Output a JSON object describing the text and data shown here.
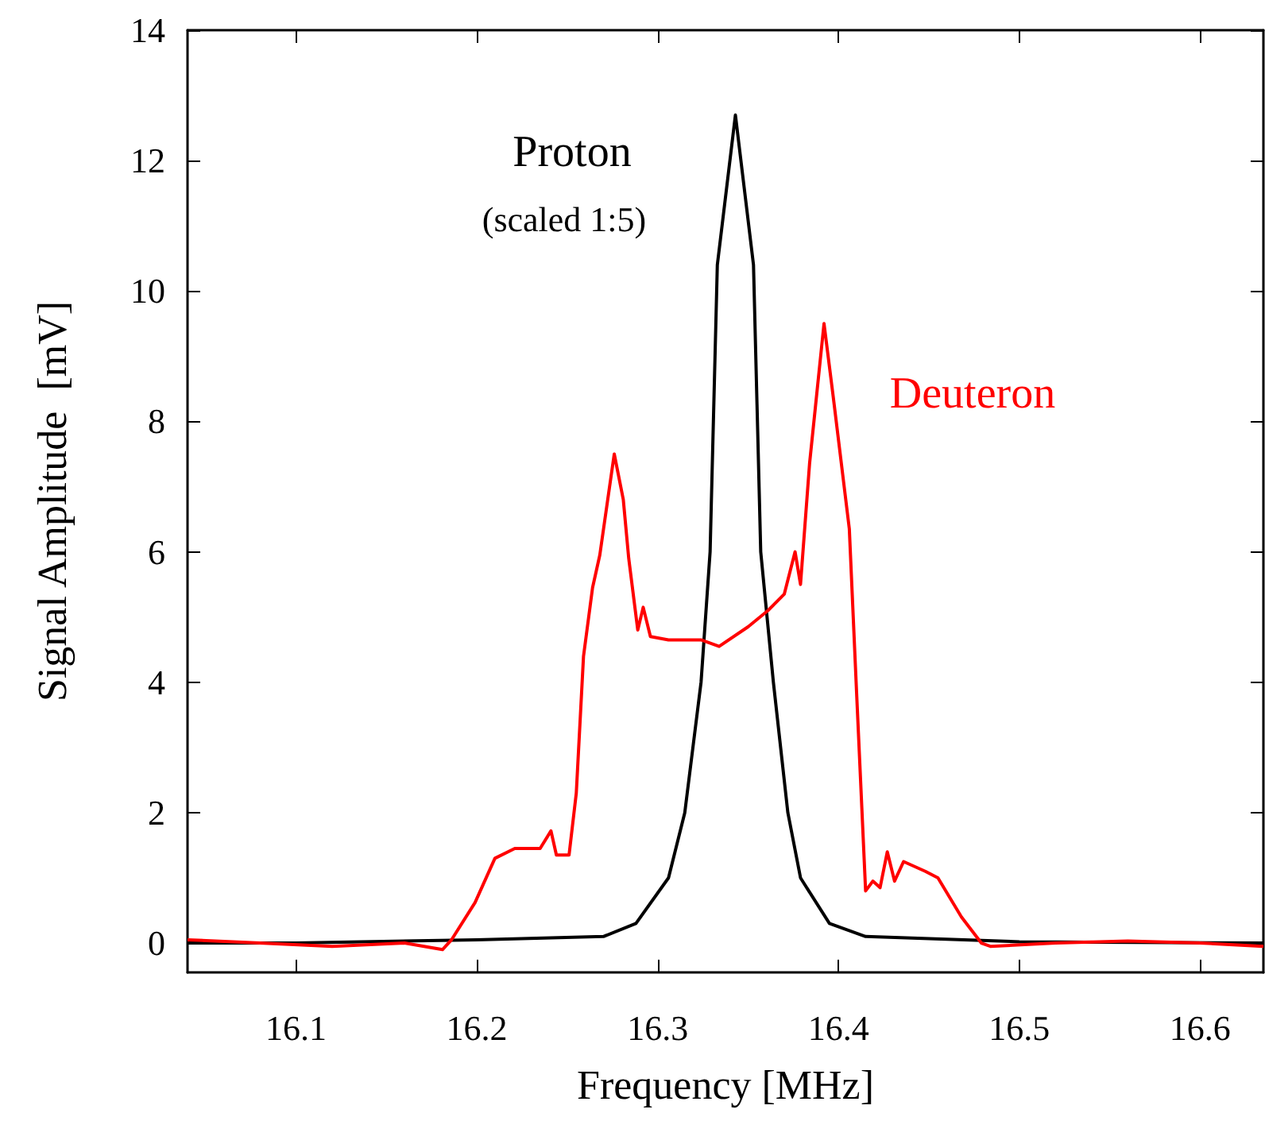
{
  "chart_data": {
    "type": "line",
    "xlabel": "Frequency [MHz]",
    "ylabel": "Signal Amplitude  [mV]",
    "annotations": [
      "(scaled 1:5)"
    ],
    "xlim": [
      16.04,
      16.635
    ],
    "ylim": [
      -0.45,
      14
    ],
    "xticks": [
      16.1,
      16.2,
      16.3,
      16.4,
      16.5,
      16.6
    ],
    "yticks": [
      0,
      2,
      4,
      6,
      8,
      10,
      12,
      14
    ],
    "grid": false,
    "legend": false,
    "marker": "none",
    "line_style": "solid",
    "series": [
      {
        "name": "Proton",
        "color": "#000000",
        "x": [
          16.04,
          16.1,
          16.2,
          16.27,
          16.288,
          16.306,
          16.315,
          16.324,
          16.329,
          16.333,
          16.343,
          16.353,
          16.357,
          16.364,
          16.372,
          16.379,
          16.395,
          16.415,
          16.5,
          16.635
        ],
        "values": [
          0,
          0,
          0.05,
          0.1,
          0.3,
          1,
          2,
          4,
          6,
          10.4,
          12.7,
          10.4,
          6,
          4,
          2,
          1,
          0.3,
          0.1,
          0.02,
          0
        ]
      },
      {
        "name": "Deuteron",
        "color": "#ff0000",
        "x": [
          16.04,
          16.08,
          16.12,
          16.16,
          16.181,
          16.186,
          16.199,
          16.21,
          16.221,
          16.235,
          16.241,
          16.244,
          16.251,
          16.255,
          16.259,
          16.264,
          16.268,
          16.276,
          16.281,
          16.284,
          16.289,
          16.292,
          16.296,
          16.306,
          16.324,
          16.334,
          16.35,
          16.361,
          16.37,
          16.376,
          16.379,
          16.384,
          16.392,
          16.397,
          16.406,
          16.41,
          16.415,
          16.419,
          16.423,
          16.427,
          16.431,
          16.436,
          16.448,
          16.455,
          16.468,
          16.479,
          16.484,
          16.52,
          16.56,
          16.6,
          16.635
        ],
        "values": [
          0.05,
          0,
          -0.05,
          0,
          -0.1,
          0.05,
          0.62,
          1.3,
          1.45,
          1.45,
          1.72,
          1.35,
          1.35,
          2.3,
          4.4,
          5.45,
          5.95,
          7.5,
          6.8,
          5.9,
          4.8,
          5.15,
          4.7,
          4.65,
          4.65,
          4.55,
          4.85,
          5.1,
          5.35,
          6.0,
          5.5,
          7.35,
          9.5,
          8.4,
          6.35,
          3.85,
          0.8,
          0.95,
          0.85,
          1.4,
          0.95,
          1.25,
          1.1,
          1.0,
          0.4,
          0,
          -0.05,
          0,
          0.03,
          0,
          -0.05
        ]
      }
    ]
  }
}
